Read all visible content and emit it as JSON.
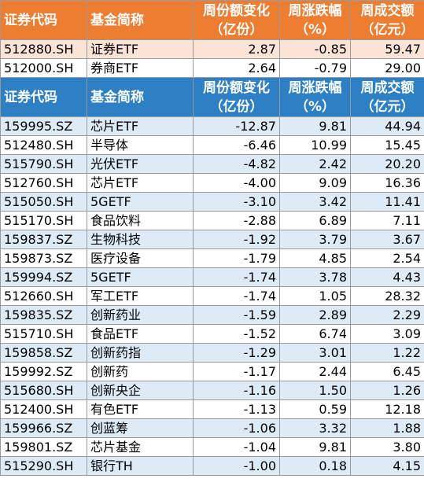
{
  "top_table": {
    "header": [
      [
        "证券代码"
      ],
      [
        "基金简称"
      ],
      [
        "周份额变化",
        "（亿份）"
      ],
      [
        "周涨跌幅",
        "（%）"
      ],
      [
        "周成交额",
        "（亿元）"
      ]
    ],
    "rows": [
      [
        "512880.SH",
        "证券ETF",
        "2.87",
        "-0.85",
        "59.47"
      ],
      [
        "512000.SH",
        "券商ETF",
        "2.64",
        "-0.79",
        "29.00"
      ]
    ]
  },
  "main_table": {
    "header": [
      [
        "证券代码"
      ],
      [
        "基金简称"
      ],
      [
        "周份额变化",
        "（亿份）"
      ],
      [
        "周涨跌幅",
        "（%）"
      ],
      [
        "周成交额",
        "（亿元）"
      ]
    ],
    "rows": [
      [
        "159995.SZ",
        "芯片ETF",
        "-12.87",
        "9.81",
        "44.94"
      ],
      [
        "512480.SH",
        "半导体",
        "-6.46",
        "10.99",
        "15.45"
      ],
      [
        "515790.SH",
        "光伏ETF",
        "-4.82",
        "2.42",
        "20.20"
      ],
      [
        "512760.SH",
        "芯片ETF",
        "-4.00",
        "9.09",
        "16.36"
      ],
      [
        "515050.SH",
        "5GETF",
        "-3.10",
        "3.42",
        "11.41"
      ],
      [
        "515170.SH",
        "食品饮料",
        "-2.88",
        "6.89",
        "7.11"
      ],
      [
        "159837.SZ",
        "生物科技",
        "-1.92",
        "3.79",
        "3.67"
      ],
      [
        "159873.SZ",
        "医疗设备",
        "-1.79",
        "4.85",
        "2.54"
      ],
      [
        "159994.SZ",
        "5GETF",
        "-1.74",
        "3.78",
        "4.43"
      ],
      [
        "512660.SH",
        "军工ETF",
        "-1.74",
        "1.05",
        "28.32"
      ],
      [
        "159835.SZ",
        "创新药业",
        "-1.59",
        "2.89",
        "2.29"
      ],
      [
        "515710.SH",
        "食品ETF",
        "-1.52",
        "6.74",
        "3.09"
      ],
      [
        "159858.SZ",
        "创新药指",
        "-1.29",
        "3.01",
        "1.22"
      ],
      [
        "159992.SZ",
        "创新药",
        "-1.17",
        "2.44",
        "6.45"
      ],
      [
        "515680.SH",
        "创新央企",
        "-1.16",
        "1.50",
        "1.26"
      ],
      [
        "512400.SH",
        "有色ETF",
        "-1.13",
        "0.59",
        "12.18"
      ],
      [
        "159966.SZ",
        "创蓝筹",
        "-1.06",
        "3.32",
        "1.88"
      ],
      [
        "159801.SZ",
        "芯片基金",
        "-1.04",
        "9.81",
        "3.80"
      ],
      [
        "515290.SH",
        "银行TH",
        "-1.00",
        "0.18",
        "4.15"
      ]
    ]
  }
}
